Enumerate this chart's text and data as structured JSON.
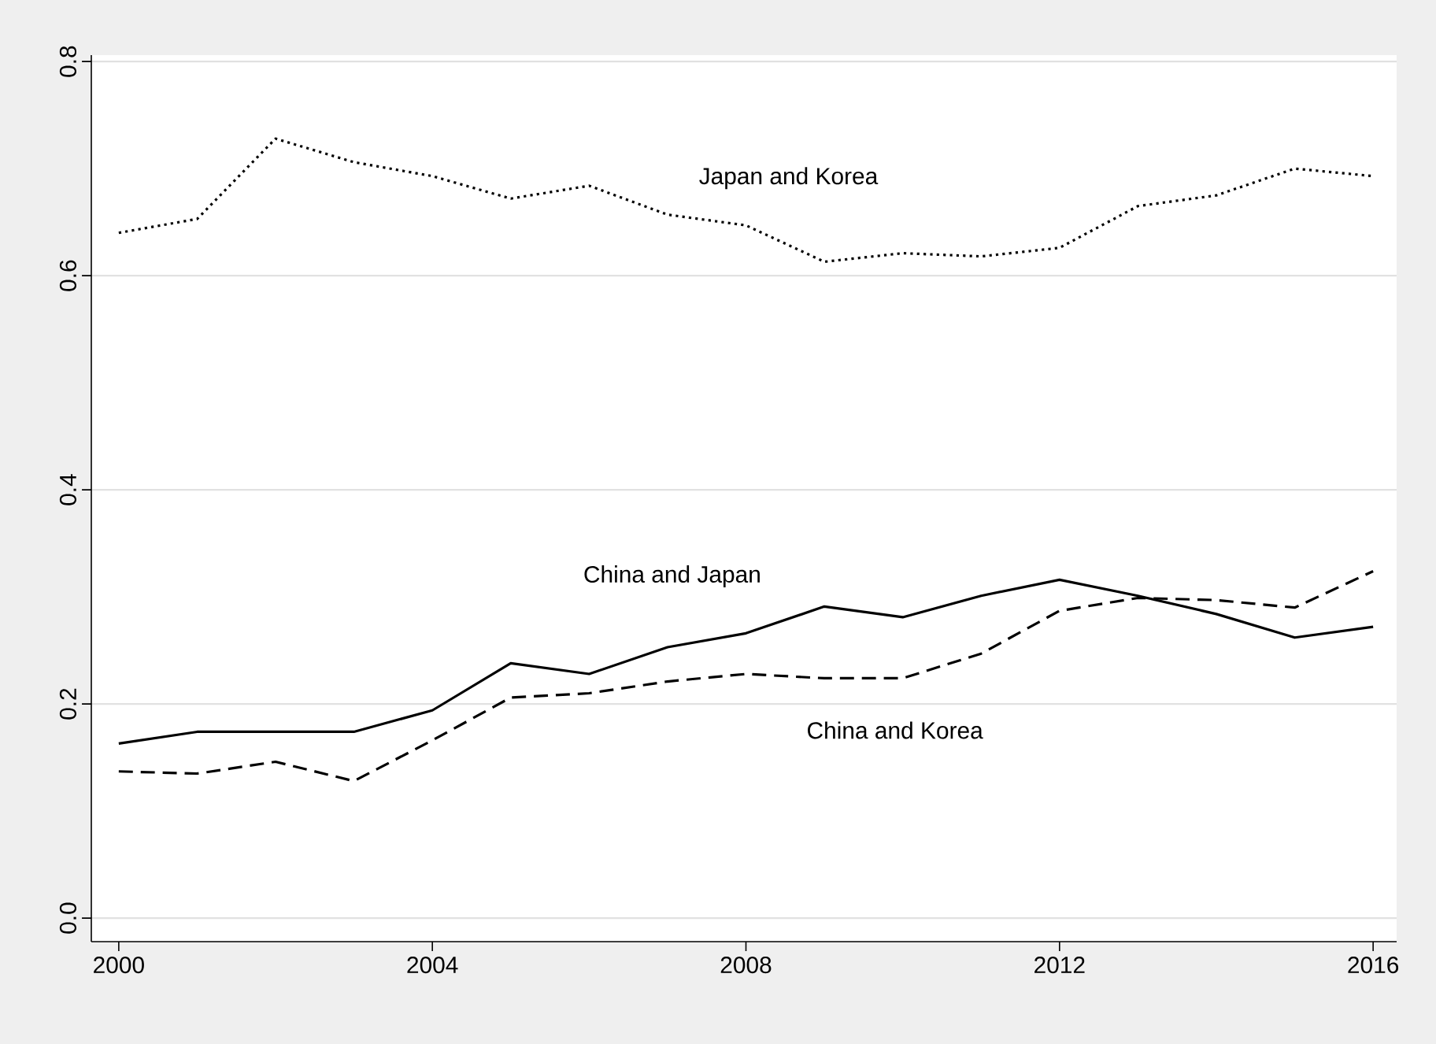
{
  "chart_data": {
    "type": "line",
    "x": [
      2000,
      2001,
      2002,
      2003,
      2004,
      2005,
      2006,
      2007,
      2008,
      2009,
      2010,
      2011,
      2012,
      2013,
      2014,
      2015,
      2016
    ],
    "series": [
      {
        "name": "Japan and Korea",
        "color": "#000000",
        "line_style": "dotted",
        "values": [
          0.64,
          0.653,
          0.728,
          0.706,
          0.693,
          0.672,
          0.684,
          0.657,
          0.647,
          0.613,
          0.621,
          0.618,
          0.626,
          0.665,
          0.675,
          0.7,
          0.693
        ]
      },
      {
        "name": "China and Japan",
        "color": "#000000",
        "line_style": "solid",
        "values": [
          0.163,
          0.174,
          0.174,
          0.174,
          0.194,
          0.238,
          0.228,
          0.253,
          0.266,
          0.291,
          0.281,
          0.301,
          0.316,
          0.301,
          0.284,
          0.262,
          0.272
        ]
      },
      {
        "name": "China and Korea",
        "color": "#000000",
        "line_style": "dashed",
        "values": [
          0.137,
          0.135,
          0.146,
          0.128,
          0.166,
          0.206,
          0.21,
          0.221,
          0.228,
          0.224,
          0.224,
          0.247,
          0.287,
          0.299,
          0.297,
          0.29,
          0.324
        ]
      }
    ],
    "xlim": [
      1999.65,
      2016.3
    ],
    "ylim": [
      -0.022,
      0.806
    ],
    "xticks": [
      2000,
      2004,
      2008,
      2012,
      2016
    ],
    "yticks": [
      {
        "value": 0,
        "label": "0.0"
      },
      {
        "value": 0.2,
        "label": "0.2"
      },
      {
        "value": 0.4,
        "label": "0.4"
      },
      {
        "value": 0.6,
        "label": "0.6"
      },
      {
        "value": 0.8,
        "label": "0.8"
      }
    ],
    "grid": "y",
    "marker": "none"
  }
}
